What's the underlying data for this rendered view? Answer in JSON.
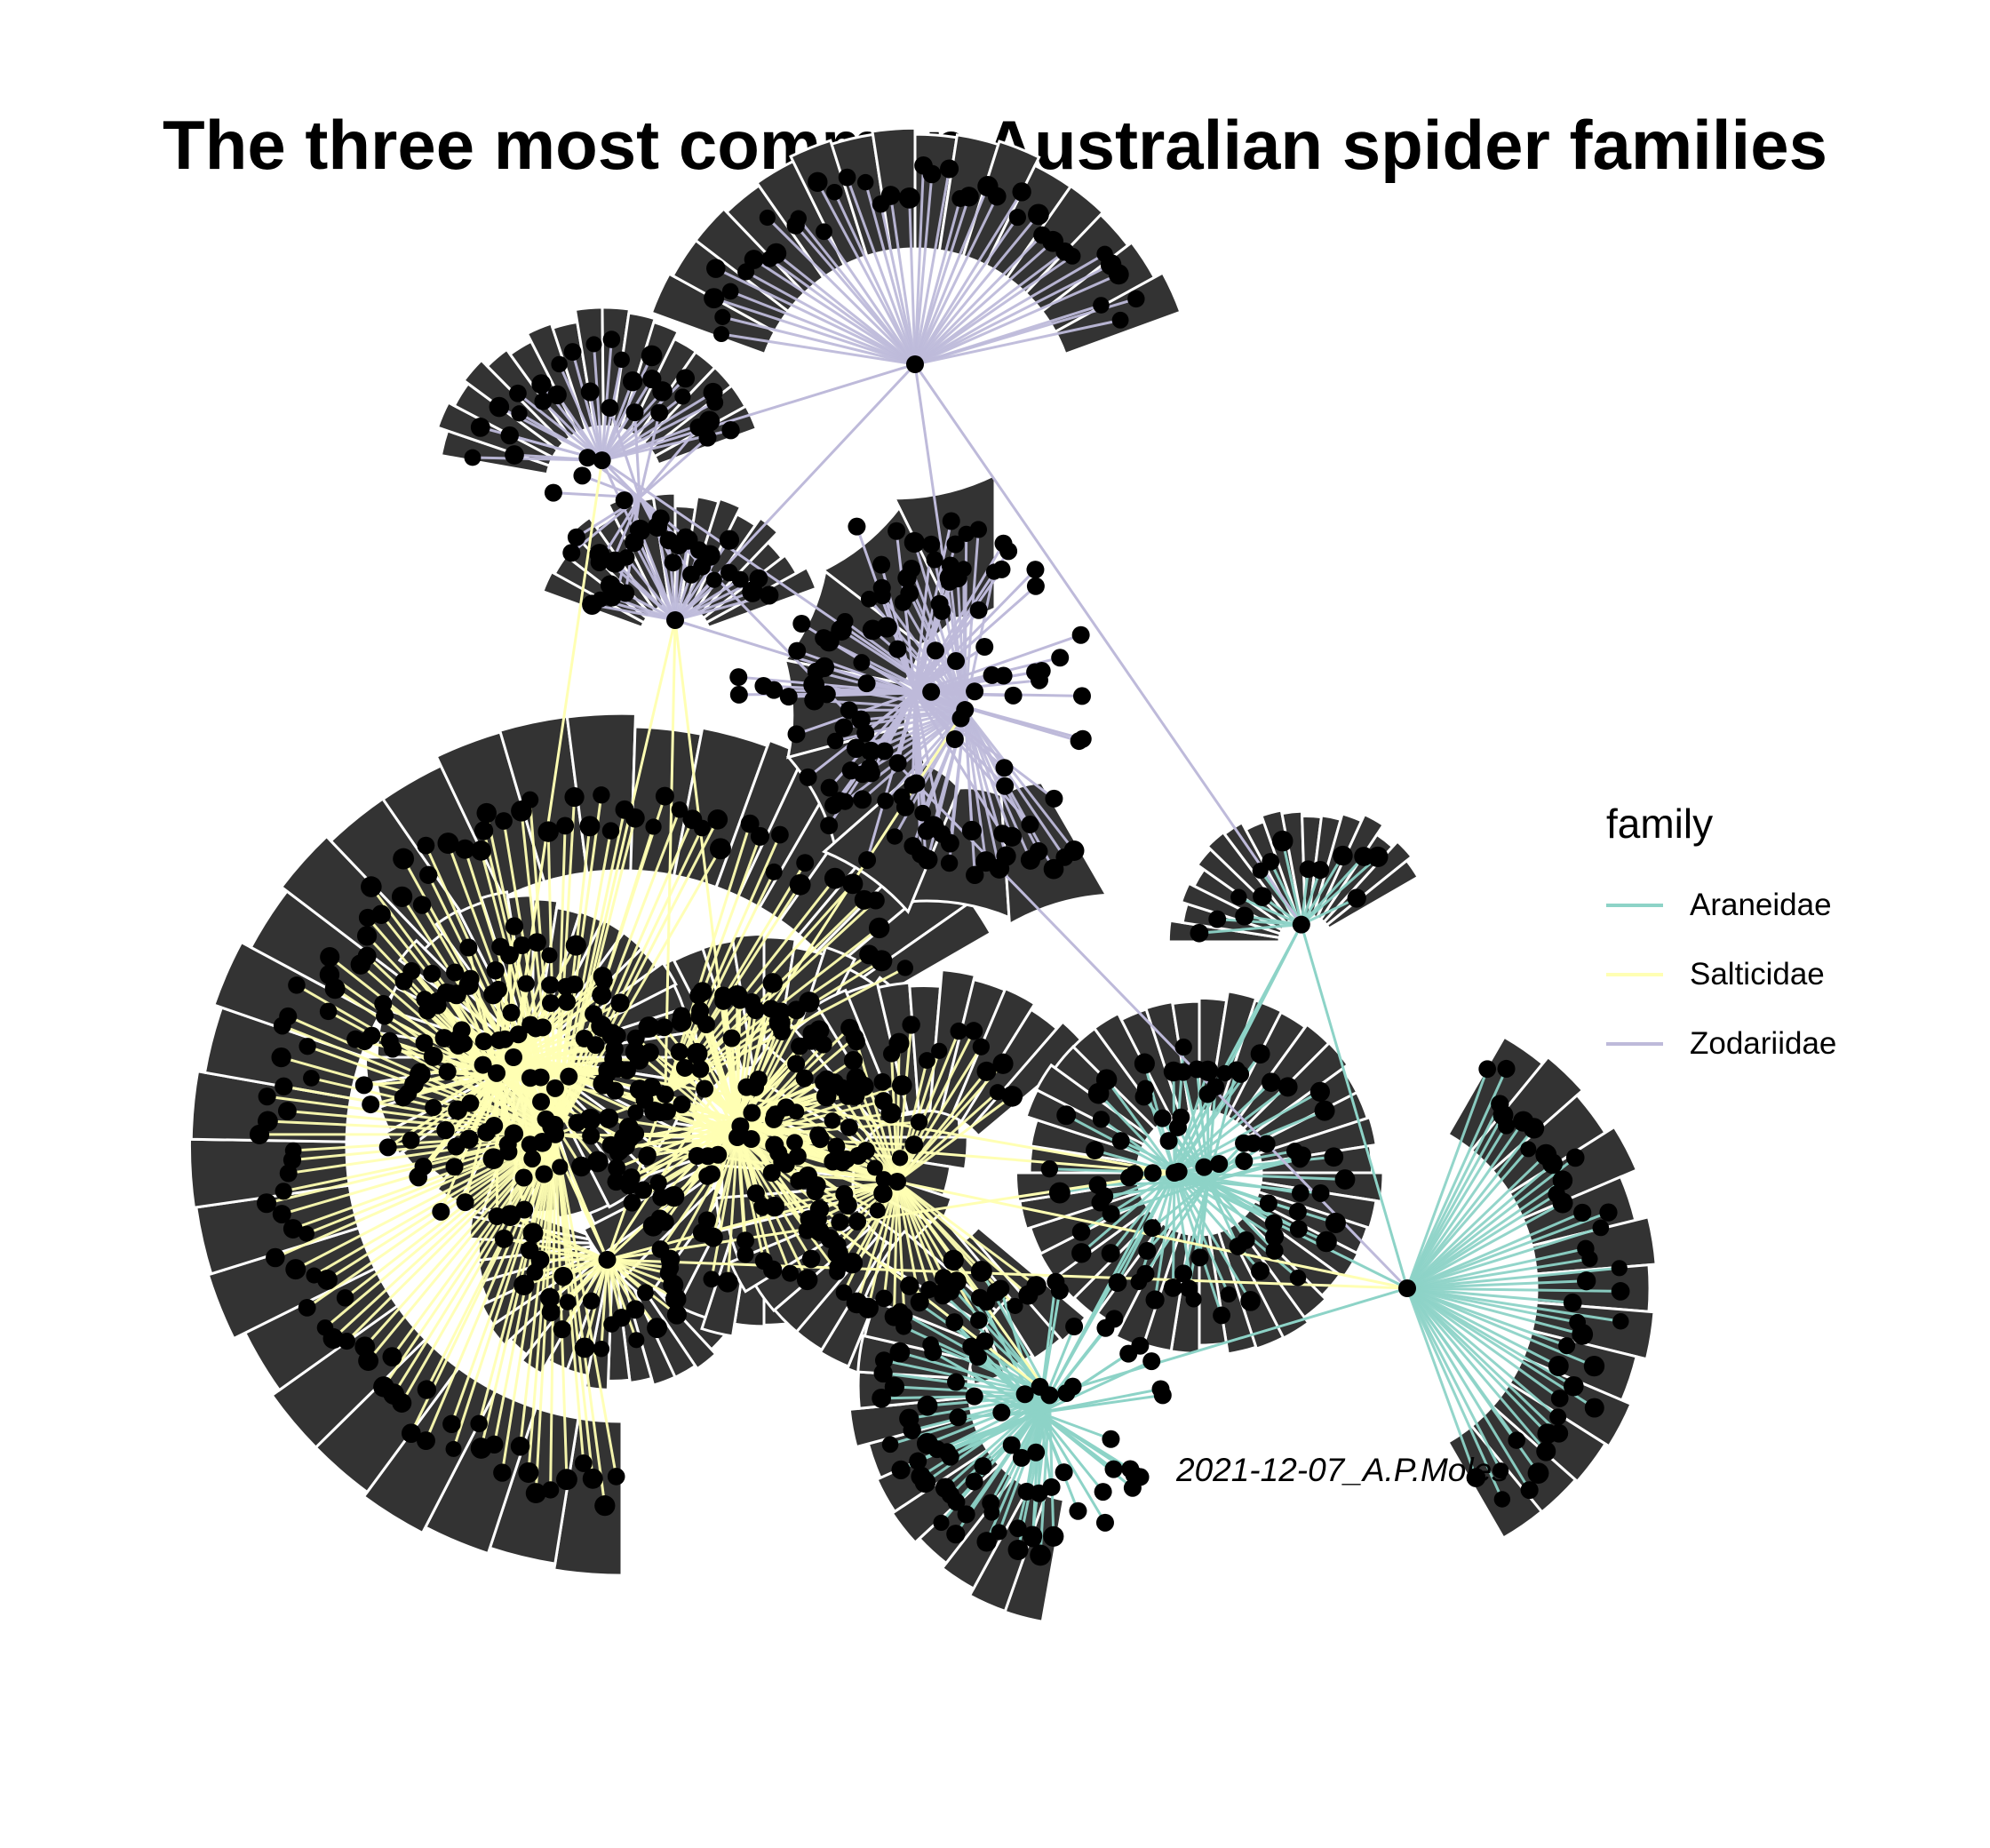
{
  "title": "The three most common Australian spider families",
  "caption": "2021-12-07_A.P.Moles",
  "legend": {
    "title": "family",
    "items": [
      {
        "label": "Araneidae",
        "color": "#8DD3C7"
      },
      {
        "label": "Salticidae",
        "color": "#FFFFB3"
      },
      {
        "label": "Zodariidae",
        "color": "#BEBADA"
      }
    ]
  },
  "colors": {
    "tile": "#333333",
    "tile_border": "#ffffff",
    "node": "#000000"
  }
}
